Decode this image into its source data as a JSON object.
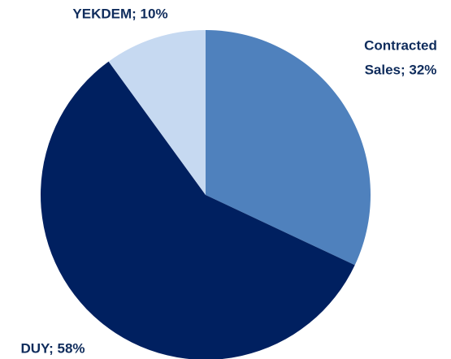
{
  "chart_data": {
    "type": "pie",
    "labels": [
      [
        "Contracted",
        "Sales; 32%"
      ],
      [
        "DUY; 58%"
      ],
      [
        "YEKDEM; 10%"
      ]
    ],
    "values": [
      32,
      58,
      10
    ],
    "colors": [
      "#4f81bd",
      "#002060",
      "#c6d9f1"
    ]
  }
}
